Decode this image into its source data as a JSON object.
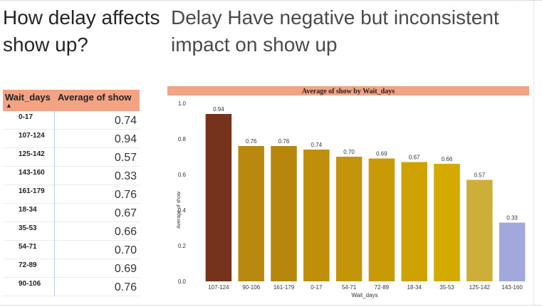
{
  "headings": {
    "left": "How delay affects show up?",
    "right": "Delay Have negative but inconsistent impact on show up"
  },
  "table": {
    "headers": {
      "wait": "Wait_days",
      "avg": "Average of show"
    },
    "sort_indicator": "▲",
    "rows": [
      {
        "wait": "0-17",
        "avg": "0.74"
      },
      {
        "wait": "107-124",
        "avg": "0.94"
      },
      {
        "wait": "125-142",
        "avg": "0.57"
      },
      {
        "wait": "143-160",
        "avg": "0.33"
      },
      {
        "wait": "161-179",
        "avg": "0.76"
      },
      {
        "wait": "18-34",
        "avg": "0.67"
      },
      {
        "wait": "35-53",
        "avg": "0.66"
      },
      {
        "wait": "54-71",
        "avg": "0.70"
      },
      {
        "wait": "72-89",
        "avg": "0.69"
      },
      {
        "wait": "90-106",
        "avg": "0.76"
      }
    ]
  },
  "chart_data": {
    "type": "bar",
    "title": "Average of show by Wait_days",
    "xlabel": "Wait_days",
    "ylabel": "Average of show",
    "categories": [
      "107-124",
      "90-106",
      "161-179",
      "0-17",
      "54-71",
      "72-89",
      "18-34",
      "35-53",
      "125-142",
      "143-160"
    ],
    "values": [
      0.94,
      0.76,
      0.76,
      0.74,
      0.7,
      0.69,
      0.67,
      0.66,
      0.57,
      0.33
    ],
    "data_labels": [
      "0.94",
      "0.76",
      "0.76",
      "0.74",
      "0.70",
      "0.69",
      "0.67",
      "0.66",
      "0.57",
      "0.33"
    ],
    "ylim": [
      0,
      1.0
    ],
    "yticks": [
      "0.0",
      "0.2",
      "0.4",
      "0.6",
      "0.8",
      "1.0"
    ],
    "grid": false,
    "legend": "none",
    "colors": [
      "#76331c",
      "#b9880f",
      "#b6860d",
      "#bf8e0b",
      "#c49509",
      "#c89a07",
      "#cfa203",
      "#d4a900",
      "#cdae38",
      "#a3a8dc"
    ],
    "title_bar_color": "#f2a384"
  }
}
